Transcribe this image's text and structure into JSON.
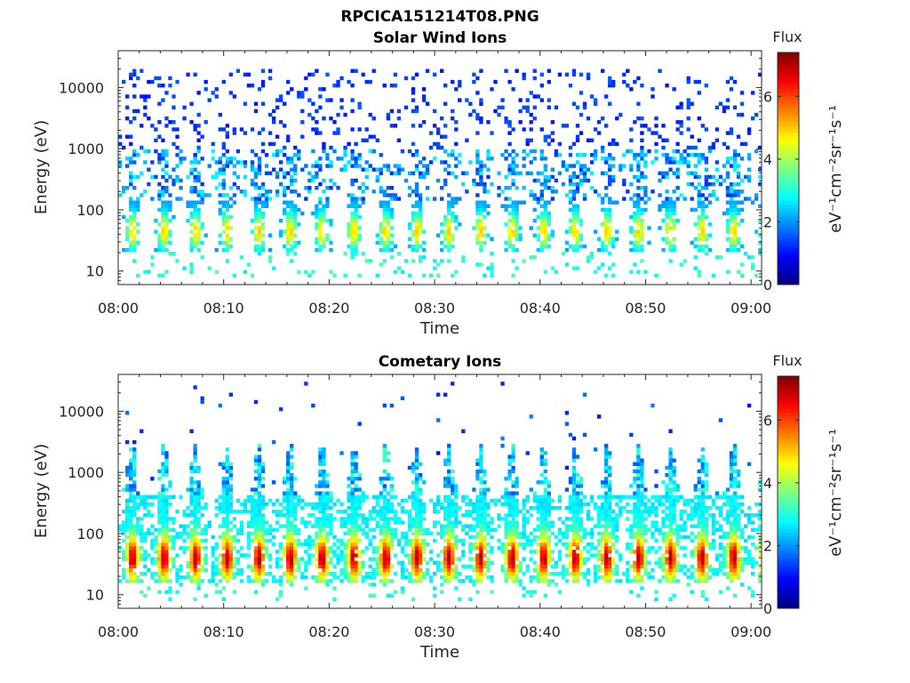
{
  "page_title": "RPCICA151214T08.PNG",
  "chart_data": [
    {
      "type": "heatmap",
      "title": "Solar Wind Ions",
      "xlabel": "Time",
      "ylabel": "Energy (eV)",
      "y_scale": "log",
      "xlim": [
        "08:00",
        "09:01"
      ],
      "ylim": [
        6,
        40000
      ],
      "x_ticks": [
        "08:00",
        "08:10",
        "08:20",
        "08:30",
        "08:40",
        "08:50",
        "09:00"
      ],
      "y_ticks": [
        "10",
        "100",
        "1000",
        "10000"
      ],
      "colorbar": {
        "title": "Flux",
        "label": "eV⁻¹cm⁻²sr⁻¹s⁻¹",
        "range": [
          0,
          7.4
        ],
        "ticks": [
          "0",
          "2",
          "4",
          "6"
        ],
        "colormap": "jet"
      },
      "features": {
        "burst_count": 20,
        "burst_period_minutes": 3,
        "core_energy_ev": [
          20,
          150
        ],
        "peak_energy_ev": 45,
        "peak_flux": 5,
        "sparse_background_energy_ev": [
          1000,
          20000
        ],
        "background_flux": 1
      }
    },
    {
      "type": "heatmap",
      "title": "Cometary Ions",
      "xlabel": "Time",
      "ylabel": "Energy (eV)",
      "y_scale": "log",
      "xlim": [
        "08:00",
        "09:01"
      ],
      "ylim": [
        6,
        40000
      ],
      "x_ticks": [
        "08:00",
        "08:10",
        "08:20",
        "08:30",
        "08:40",
        "08:50",
        "09:00"
      ],
      "y_ticks": [
        "10",
        "100",
        "1000",
        "10000"
      ],
      "colorbar": {
        "title": "Flux",
        "label": "eV⁻¹cm⁻²sr⁻¹s⁻¹",
        "range": [
          0,
          7.4
        ],
        "ticks": [
          "0",
          "2",
          "4",
          "6"
        ],
        "colormap": "jet"
      },
      "features": {
        "burst_count": 20,
        "burst_period_minutes": 3,
        "core_energy_ev": [
          15,
          400
        ],
        "peak_energy_ev": 40,
        "peak_flux": 6.8,
        "plume_top_energy_ev": 3000
      }
    }
  ]
}
